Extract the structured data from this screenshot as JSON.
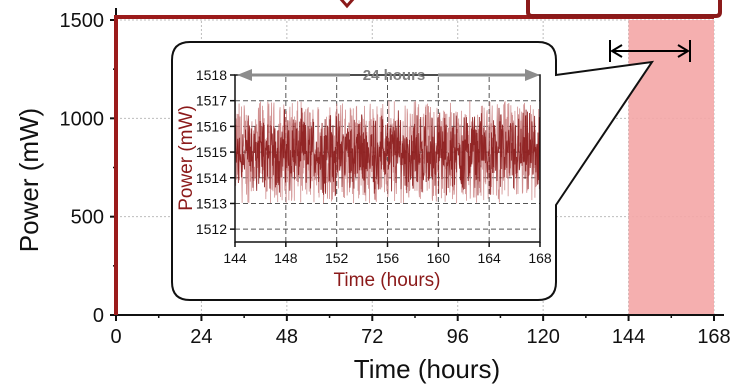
{
  "chart_data": [
    {
      "type": "line",
      "title": "",
      "xlabel": "Time (hours)",
      "ylabel": "Power (mW)",
      "xlim": [
        0,
        168
      ],
      "ylim": [
        0,
        1500
      ],
      "xticks": [
        0,
        24,
        48,
        72,
        96,
        120,
        144,
        168
      ],
      "yticks": [
        0,
        500,
        1000,
        1500
      ],
      "grid": true,
      "series": [
        {
          "name": "",
          "x": [
            0,
            168
          ],
          "y": [
            1515,
            1515
          ]
        }
      ],
      "highlight_span": {
        "x": [
          144,
          168
        ]
      },
      "colors": {
        "line": "#9b1b1b",
        "highlight": "#f4a6a6",
        "annotation": "#8b1a1a"
      }
    },
    {
      "type": "line",
      "title": "",
      "xlabel": "Time (hours)",
      "ylabel": "Power (mW)",
      "xlim": [
        144,
        168
      ],
      "ylim": [
        1511.5,
        1518
      ],
      "xticks": [
        144,
        148,
        152,
        156,
        160,
        164,
        168
      ],
      "yticks": [
        1512,
        1513,
        1514,
        1515,
        1516,
        1517,
        1518
      ],
      "grid": true,
      "annotation": {
        "text": "24 hours",
        "x": [
          144,
          168
        ]
      },
      "series": [
        {
          "name": "",
          "mean": 1515,
          "range": [
            1513,
            1517
          ]
        }
      ]
    }
  ]
}
